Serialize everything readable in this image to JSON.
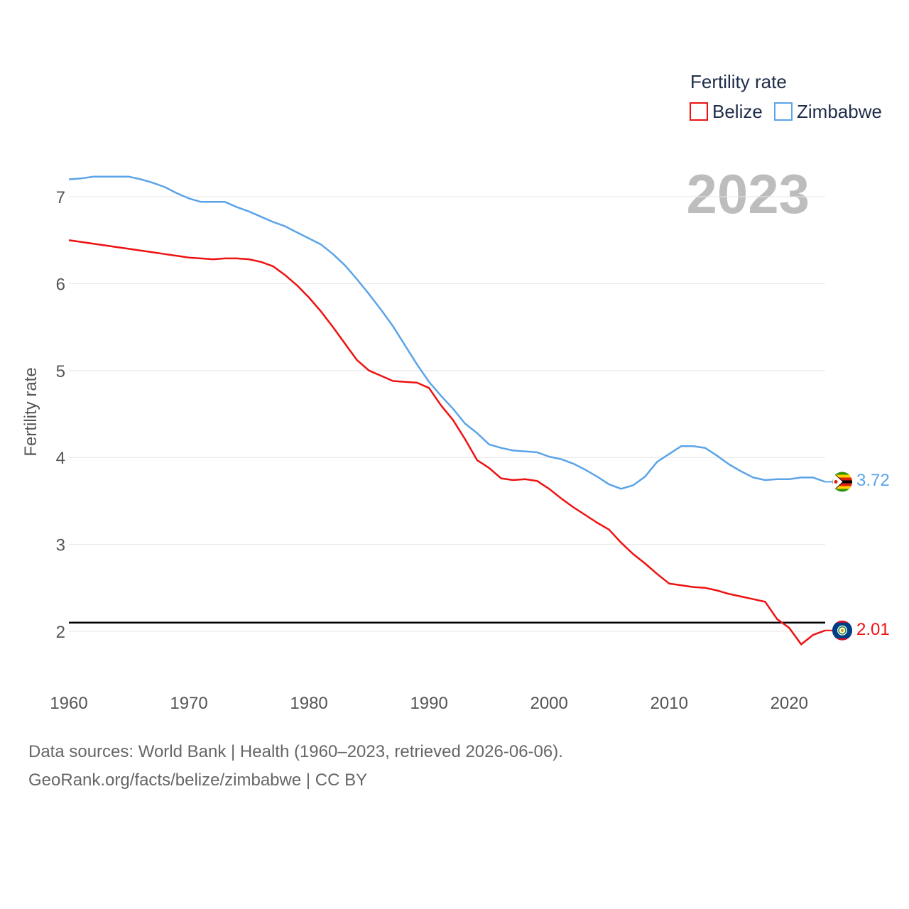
{
  "legend": {
    "title": "Fertility rate"
  },
  "year_label": "2023",
  "end_values": {
    "belize": "2.01",
    "zimbabwe": "3.72"
  },
  "footer": {
    "sources": "Data sources: World Bank | Health (1960–2023, retrieved 2026-06-06).",
    "credit": "GeoRank.org/facts/belize/zimbabwe | CC BY"
  },
  "colors": {
    "belize": "#ee1111",
    "zimbabwe": "#5ba4e8",
    "reference": "#000000",
    "grid": "#e6e6e6"
  },
  "icons": {
    "belize": "belize-flag-icon",
    "zimbabwe": "zimbabwe-flag-icon"
  },
  "chart_data": {
    "type": "line",
    "title": "",
    "xlabel": "",
    "ylabel": "Fertility rate",
    "xlim": [
      1960,
      2023
    ],
    "ylim": [
      1.6,
      7.4
    ],
    "x_ticks": [
      1960,
      1970,
      1980,
      1990,
      2000,
      2010,
      2020
    ],
    "y_ticks": [
      2,
      3,
      4,
      5,
      6,
      7
    ],
    "reference_line": 2.1,
    "x": [
      1960,
      1961,
      1962,
      1963,
      1964,
      1965,
      1966,
      1967,
      1968,
      1969,
      1970,
      1971,
      1972,
      1973,
      1974,
      1975,
      1976,
      1977,
      1978,
      1979,
      1980,
      1981,
      1982,
      1983,
      1984,
      1985,
      1986,
      1987,
      1988,
      1989,
      1990,
      1991,
      1992,
      1993,
      1994,
      1995,
      1996,
      1997,
      1998,
      1999,
      2000,
      2001,
      2002,
      2003,
      2004,
      2005,
      2006,
      2007,
      2008,
      2009,
      2010,
      2011,
      2012,
      2013,
      2014,
      2015,
      2016,
      2017,
      2018,
      2019,
      2020,
      2021,
      2022,
      2023
    ],
    "series": [
      {
        "name": "Belize",
        "color": "#ee1111",
        "values": [
          6.5,
          6.48,
          6.46,
          6.44,
          6.42,
          6.4,
          6.38,
          6.36,
          6.34,
          6.32,
          6.3,
          6.29,
          6.28,
          6.29,
          6.29,
          6.28,
          6.25,
          6.2,
          6.1,
          5.98,
          5.84,
          5.68,
          5.5,
          5.31,
          5.12,
          5.0,
          4.94,
          4.88,
          4.87,
          4.86,
          4.8,
          4.6,
          4.43,
          4.21,
          3.97,
          3.88,
          3.76,
          3.74,
          3.75,
          3.73,
          3.64,
          3.53,
          3.43,
          3.34,
          3.25,
          3.17,
          3.02,
          2.89,
          2.78,
          2.66,
          2.55,
          2.53,
          2.51,
          2.5,
          2.47,
          2.43,
          2.4,
          2.37,
          2.34,
          2.14,
          2.04,
          1.85,
          1.96,
          2.01
        ]
      },
      {
        "name": "Zimbabwe",
        "color": "#5ba4e8",
        "values": [
          7.2,
          7.21,
          7.23,
          7.23,
          7.23,
          7.23,
          7.2,
          7.16,
          7.11,
          7.04,
          6.98,
          6.94,
          6.94,
          6.94,
          6.88,
          6.83,
          6.77,
          6.71,
          6.66,
          6.59,
          6.52,
          6.45,
          6.34,
          6.21,
          6.05,
          5.88,
          5.7,
          5.51,
          5.29,
          5.07,
          4.87,
          4.71,
          4.56,
          4.39,
          4.28,
          4.15,
          4.11,
          4.08,
          4.07,
          4.06,
          4.01,
          3.98,
          3.93,
          3.86,
          3.78,
          3.69,
          3.64,
          3.68,
          3.78,
          3.95,
          4.04,
          4.13,
          4.13,
          4.11,
          4.02,
          3.92,
          3.84,
          3.77,
          3.74,
          3.75,
          3.75,
          3.77,
          3.77,
          3.72
        ]
      }
    ]
  }
}
